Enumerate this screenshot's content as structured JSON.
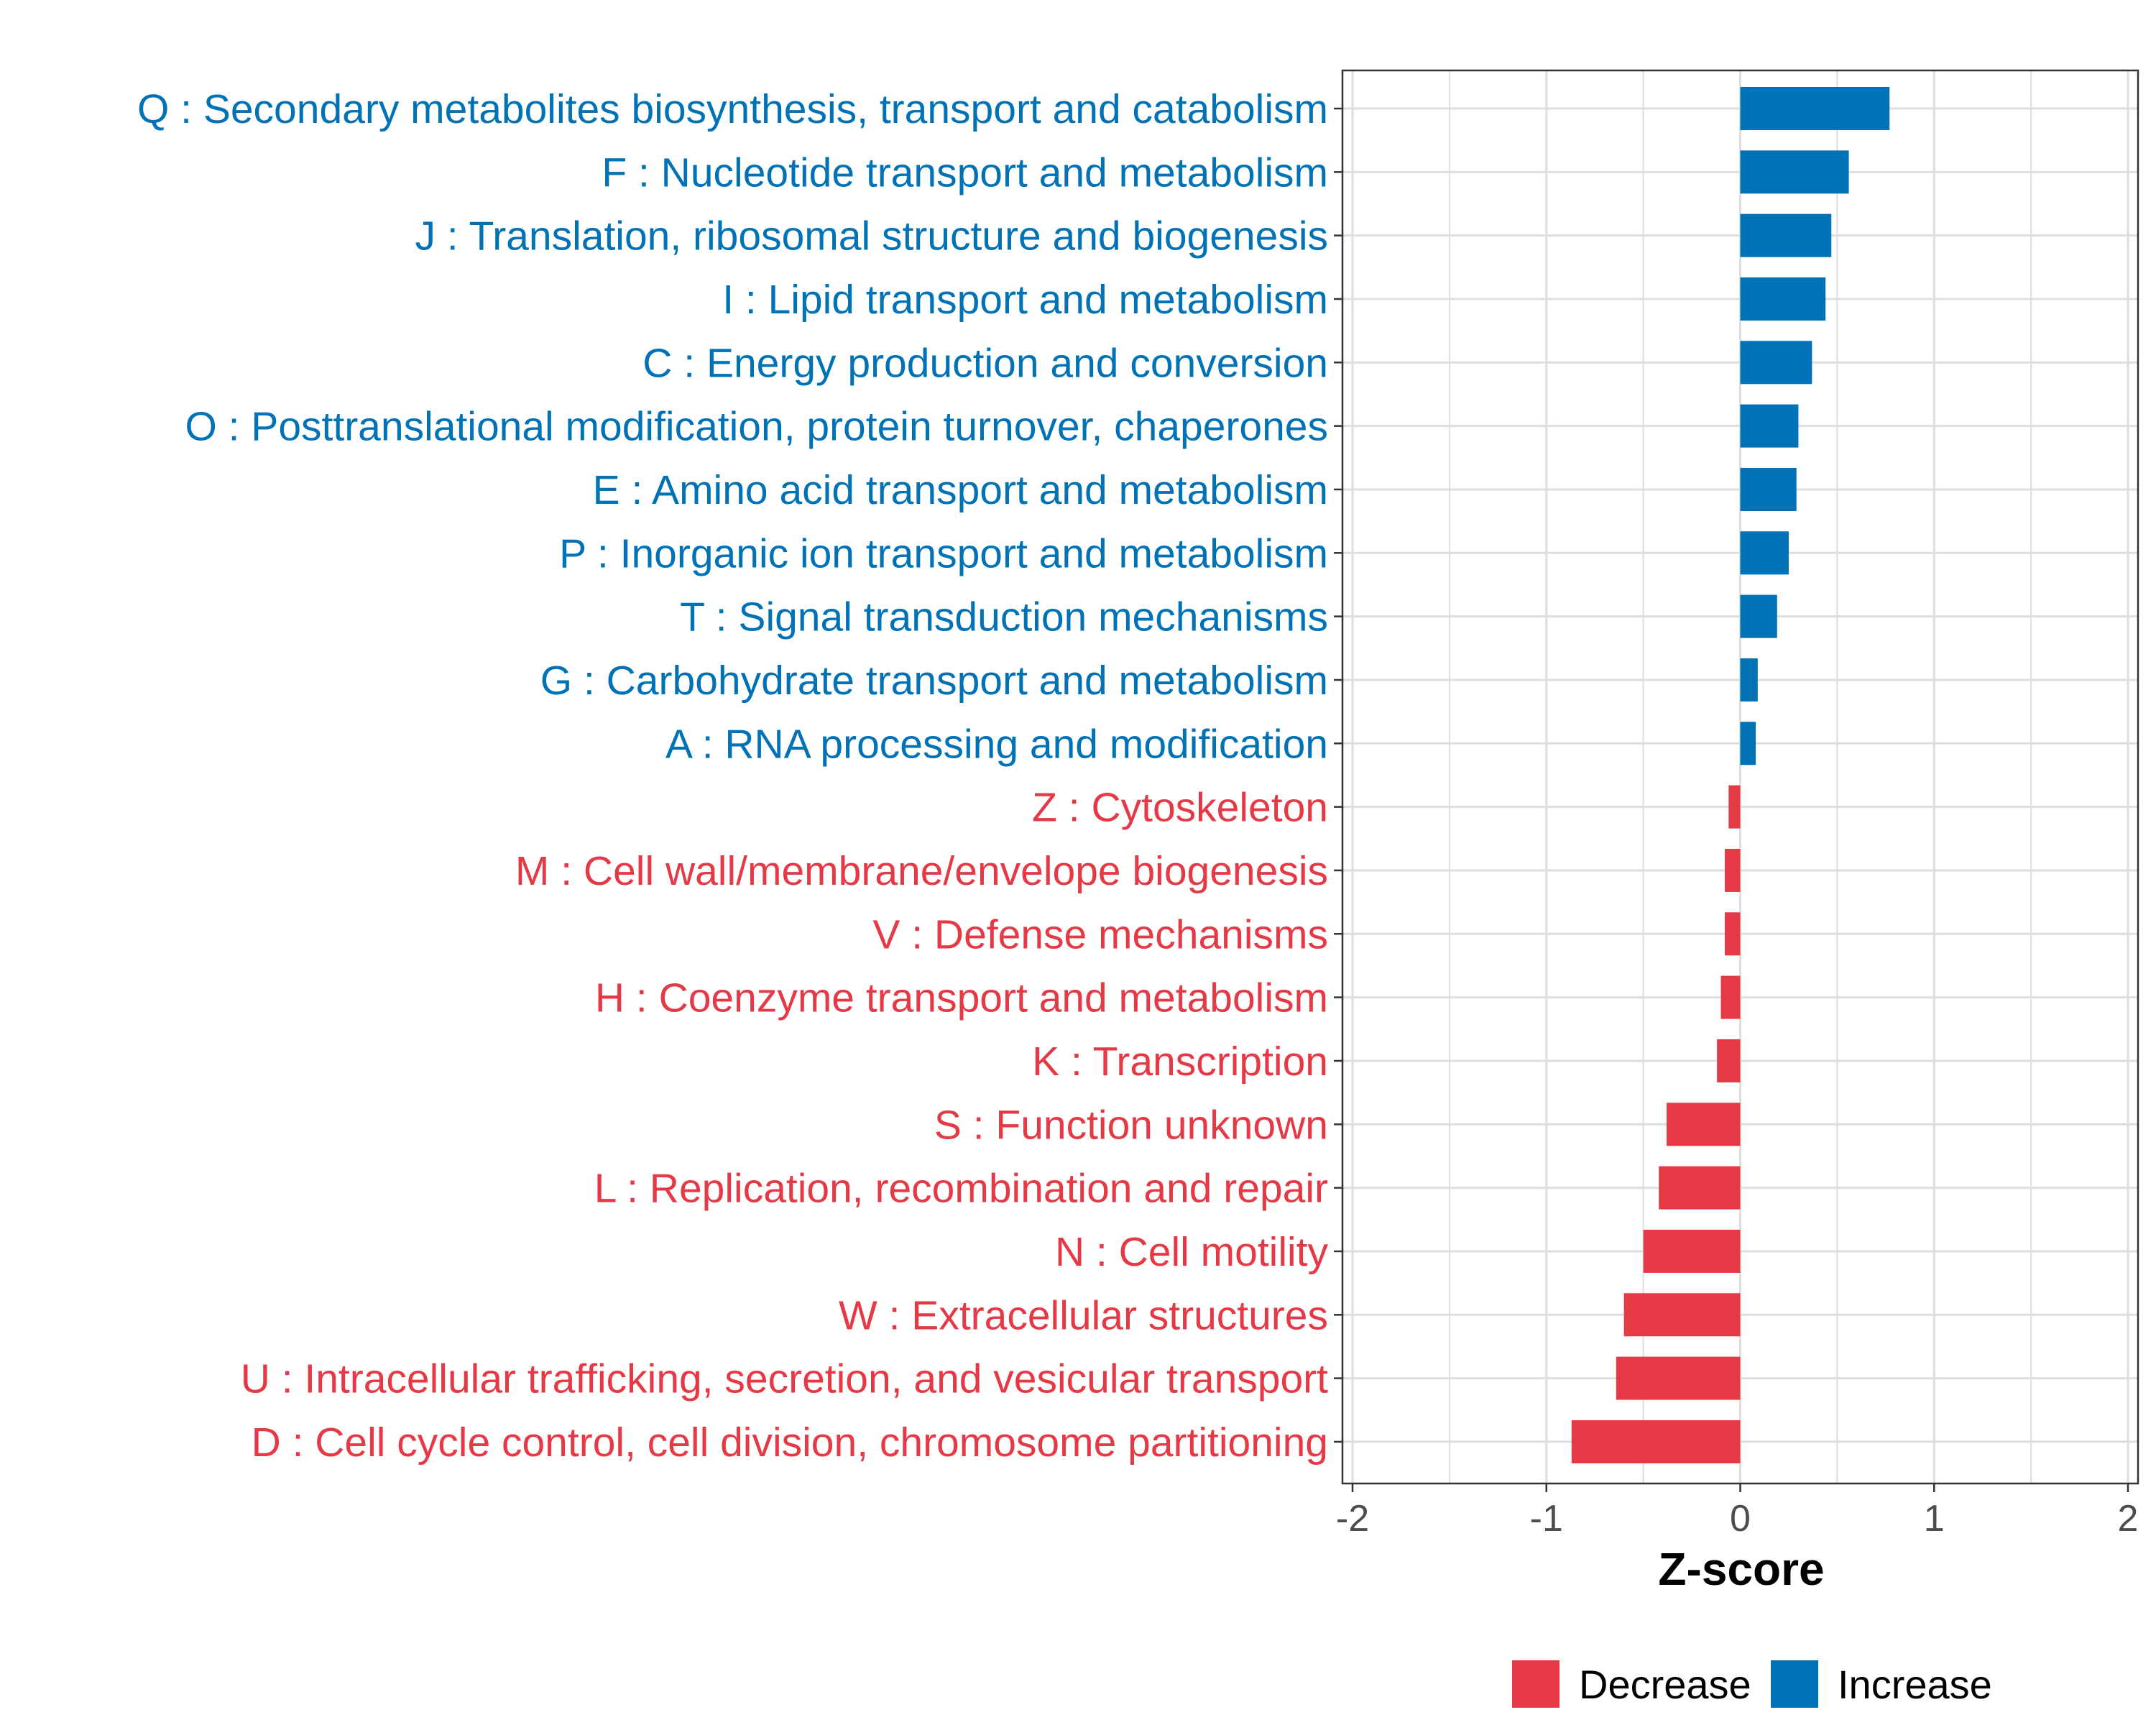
{
  "chart_data": {
    "type": "bar",
    "orientation": "horizontal",
    "title": "",
    "xlabel": "Z-score",
    "ylabel": "",
    "xlim": [
      -2,
      2
    ],
    "xticks": [
      "-2",
      "-1",
      "0",
      "1",
      "2"
    ],
    "grid": true,
    "legend_position": "bottom",
    "colors": {
      "Increase": "#0072B5",
      "Decrease": "#E63946"
    },
    "legend": [
      {
        "label": "Decrease",
        "color": "#E63946"
      },
      {
        "label": "Increase",
        "color": "#0072B5"
      }
    ],
    "categories": [
      "Q : Secondary metabolites biosynthesis, transport and catabolism",
      "F : Nucleotide transport and metabolism",
      "J : Translation, ribosomal structure and biogenesis",
      "I : Lipid transport and metabolism",
      "C : Energy production and conversion",
      "O : Posttranslational modification, protein turnover, chaperones",
      "E : Amino acid transport and metabolism",
      "P : Inorganic ion transport and metabolism",
      "T : Signal transduction mechanisms",
      "G : Carbohydrate transport and metabolism",
      "A : RNA processing and modification",
      "Z : Cytoskeleton",
      "M : Cell wall/membrane/envelope biogenesis",
      "V : Defense mechanisms",
      "H : Coenzyme transport and metabolism",
      "K : Transcription",
      "S : Function unknown",
      "L : Replication, recombination and repair",
      "N : Cell motility",
      "W : Extracellular structures",
      "U : Intracellular trafficking, secretion, and vesicular transport",
      "D : Cell cycle control, cell division, chromosome partitioning"
    ],
    "values": [
      0.77,
      0.56,
      0.47,
      0.44,
      0.37,
      0.3,
      0.29,
      0.25,
      0.19,
      0.09,
      0.08,
      -0.06,
      -0.08,
      -0.08,
      -0.1,
      -0.12,
      -0.38,
      -0.42,
      -0.5,
      -0.6,
      -0.64,
      -0.87
    ],
    "groups": [
      "Increase",
      "Increase",
      "Increase",
      "Increase",
      "Increase",
      "Increase",
      "Increase",
      "Increase",
      "Increase",
      "Increase",
      "Increase",
      "Decrease",
      "Decrease",
      "Decrease",
      "Decrease",
      "Decrease",
      "Decrease",
      "Decrease",
      "Decrease",
      "Decrease",
      "Decrease",
      "Decrease"
    ]
  }
}
